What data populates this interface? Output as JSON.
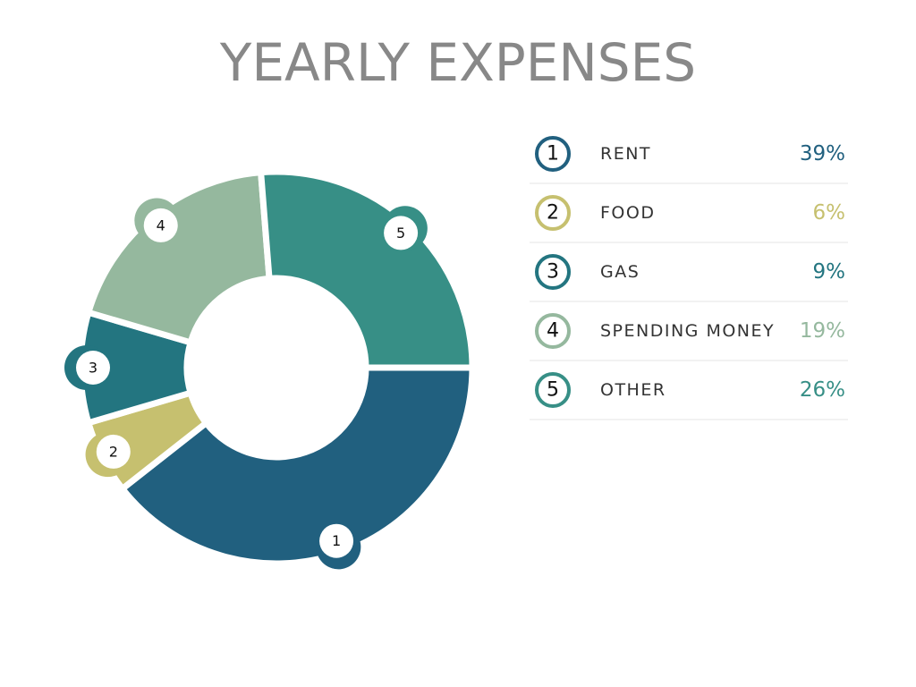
{
  "chart_data": {
    "type": "pie",
    "title": "YEARLY EXPENSES",
    "categories": [
      "RENT",
      "FOOD",
      "GAS",
      "SPENDING MONEY",
      "OTHER"
    ],
    "markers": [
      "1",
      "2",
      "3",
      "4",
      "5"
    ],
    "values": [
      39,
      6,
      9,
      19,
      26
    ],
    "value_labels": [
      "39%",
      "6%",
      "9%",
      "19%",
      "26%"
    ],
    "colors": [
      "#21607f",
      "#c6c06f",
      "#237580",
      "#95b89e",
      "#378f86"
    ]
  }
}
